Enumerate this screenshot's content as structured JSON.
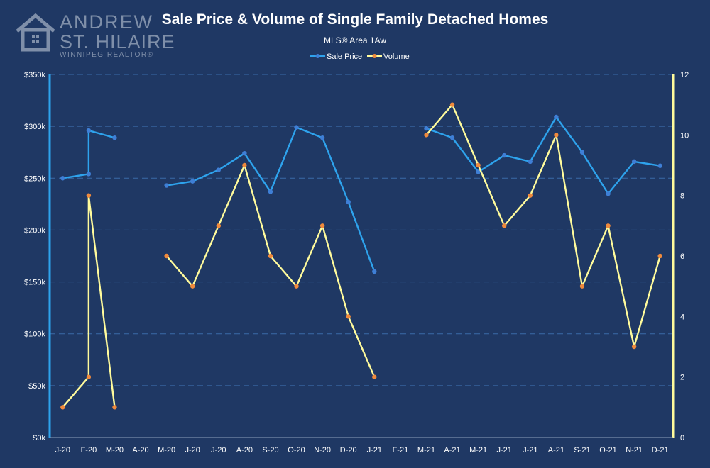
{
  "logo": {
    "line1": "ANDREW",
    "line2": "ST. HILAIRE",
    "line3": "WINNIPEG REALTOR®",
    "icon": "house-icon"
  },
  "colors": {
    "background": "#1f3864",
    "sale_price": "#2ea3ed",
    "volume_line": "#fffb9c",
    "volume_marker": "#f08a3c",
    "grid": "#3a6aa8"
  },
  "chart_data": {
    "type": "line",
    "title": "Sale Price & Volume of Single Family Detached Homes",
    "subtitle": "MLS® Area 1Aw",
    "categories": [
      "J-20",
      "F-20",
      "M-20",
      "A-20",
      "M-20",
      "J-20",
      "J-20",
      "A-20",
      "S-20",
      "O-20",
      "N-20",
      "D-20",
      "J-21",
      "F-21",
      "M-21",
      "A-21",
      "M-21",
      "J-21",
      "J-21",
      "A-21",
      "S-21",
      "O-21",
      "N-21",
      "D-21"
    ],
    "y_left": {
      "ticks": [
        "$0k",
        "$50k",
        "$100k",
        "$150k",
        "$200k",
        "$250k",
        "$300k",
        "$350k"
      ],
      "range": [
        0,
        350000
      ]
    },
    "y_right": {
      "ticks": [
        "0",
        "2",
        "4",
        "6",
        "8",
        "10",
        "12"
      ],
      "range": [
        0,
        12
      ]
    },
    "legend_position": "top",
    "grid": true,
    "series": [
      {
        "name": "Sale Price",
        "axis": "left",
        "values": [
          250000,
          254000,
          289000,
          null,
          243000,
          247000,
          258000,
          274000,
          237000,
          299000,
          289000,
          227000,
          160000,
          null,
          298000,
          289000,
          256000,
          272000,
          266000,
          309000,
          275000,
          235000,
          266000,
          262000
        ],
        "extra_points": [
          {
            "index": 1,
            "value": 296000
          }
        ]
      },
      {
        "name": "Volume",
        "axis": "right",
        "values": [
          1,
          2,
          1,
          null,
          6,
          5,
          7,
          9,
          6,
          5,
          7,
          4,
          2,
          null,
          10,
          11,
          9,
          7,
          8,
          10,
          5,
          7,
          3,
          6
        ],
        "extra_points": [
          {
            "index": 1,
            "value": 8
          }
        ]
      }
    ]
  }
}
